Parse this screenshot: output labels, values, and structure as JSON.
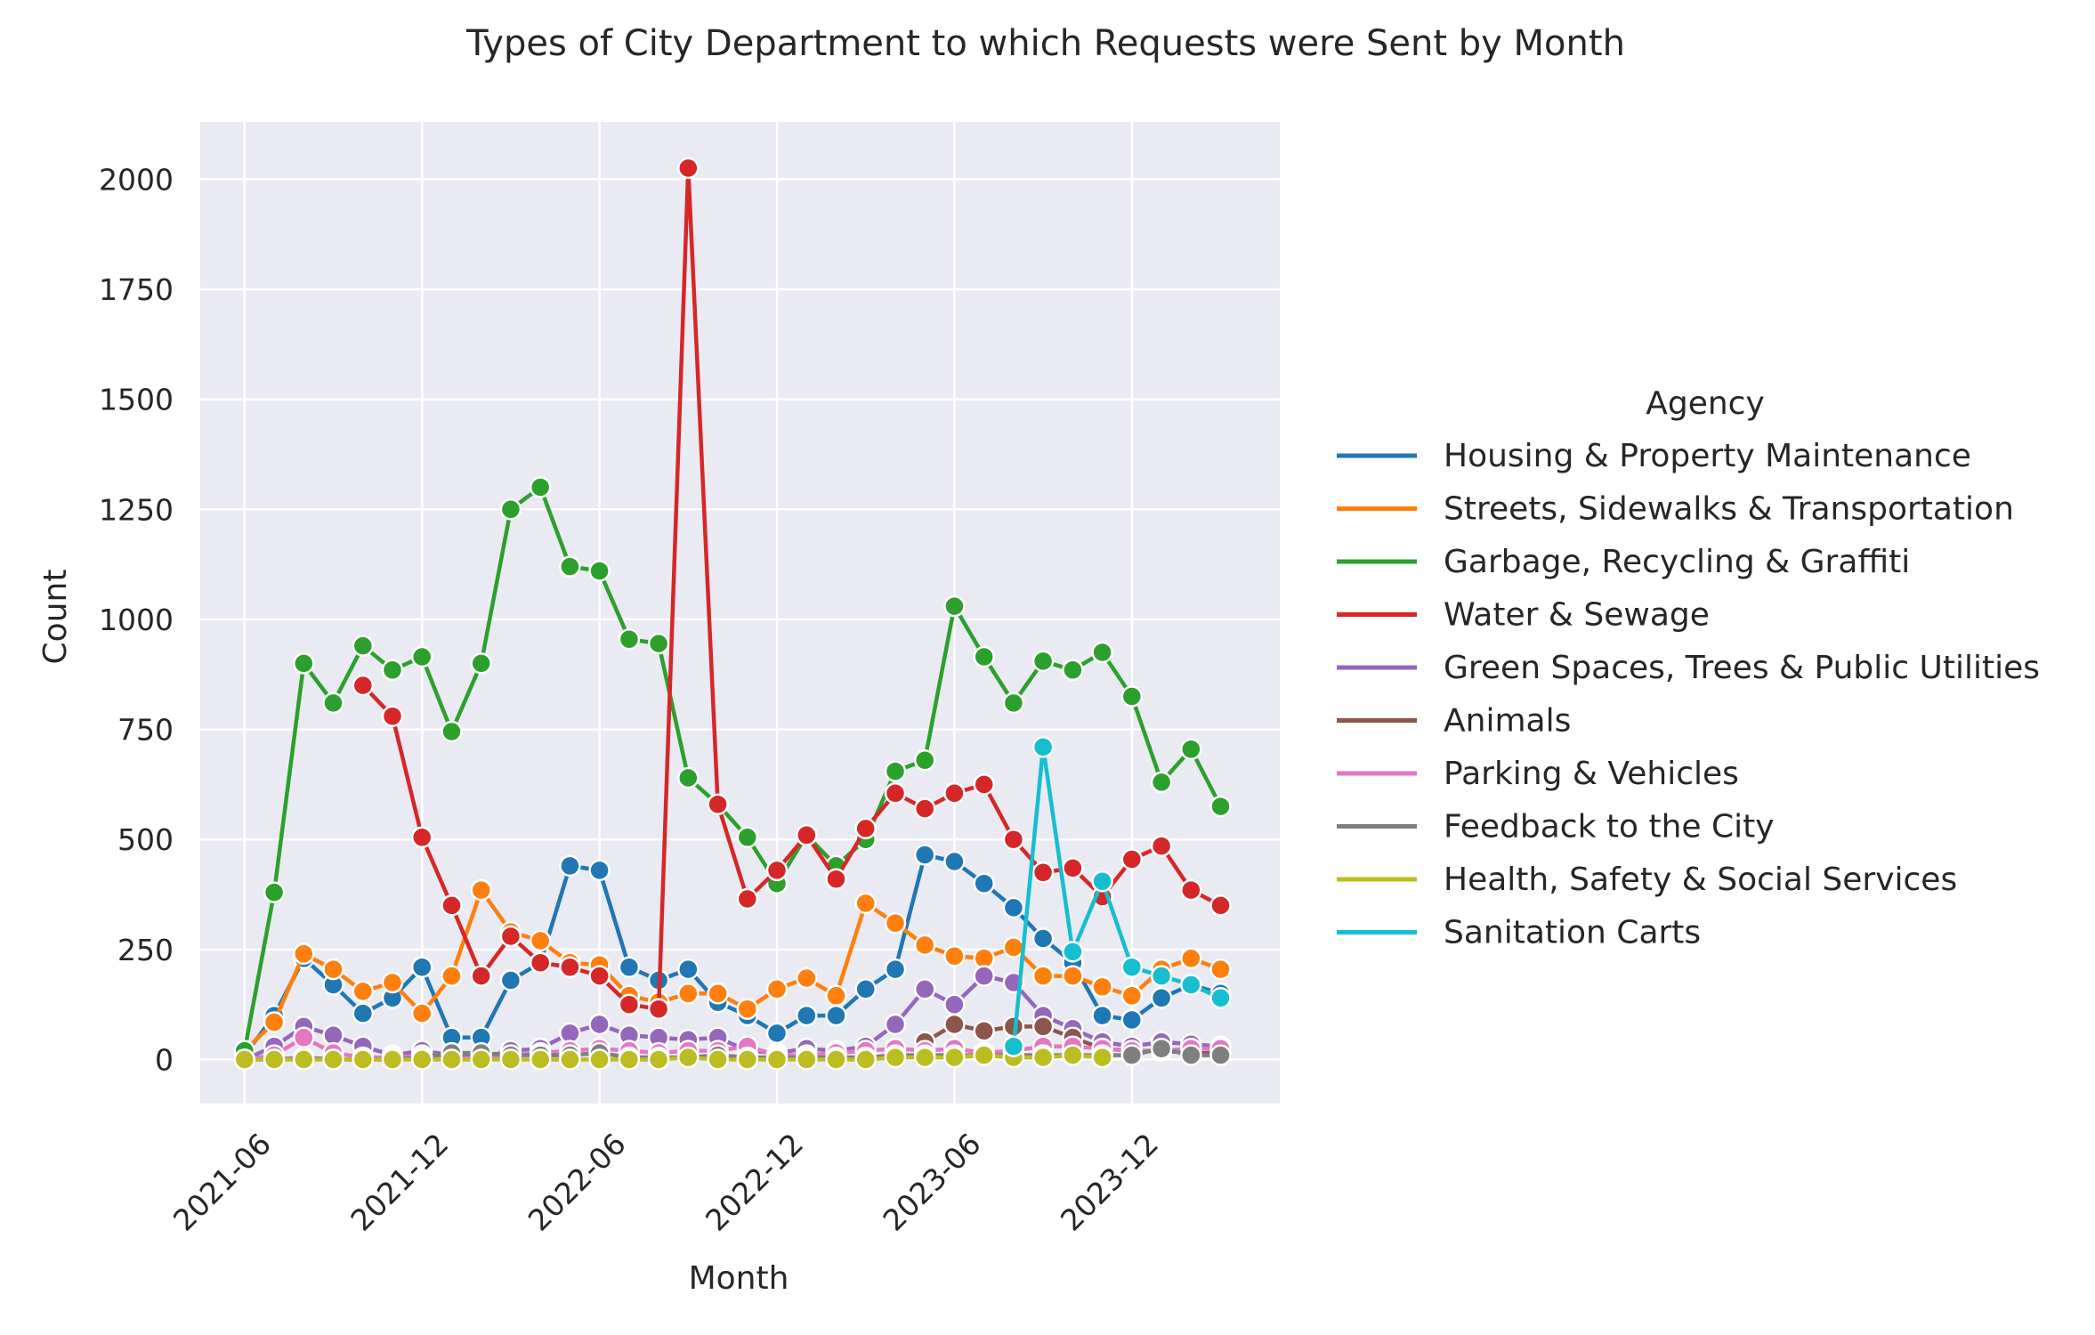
{
  "chart_data": {
    "type": "line",
    "title": "Types of City Department to which Requests were Sent by Month",
    "xlabel": "Month",
    "ylabel": "Count",
    "ylim": [
      -100,
      2130
    ],
    "y_ticks": [
      0,
      250,
      500,
      750,
      1000,
      1250,
      1500,
      1750,
      2000
    ],
    "x_ticks": [
      "2021-06",
      "2021-12",
      "2022-06",
      "2022-12",
      "2023-06",
      "2023-12"
    ],
    "x_tick_index": [
      0,
      6,
      12,
      18,
      24,
      30
    ],
    "x_range_index": [
      -1.5,
      35
    ],
    "grid": true,
    "background": "#eaeaf2",
    "legend": {
      "title": "Agency",
      "position": "right"
    },
    "x": [
      "2021-06",
      "2021-07",
      "2021-08",
      "2021-09",
      "2021-10",
      "2021-11",
      "2021-12",
      "2022-01",
      "2022-02",
      "2022-03",
      "2022-04",
      "2022-05",
      "2022-06",
      "2022-07",
      "2022-08",
      "2022-09",
      "2022-10",
      "2022-11",
      "2022-12",
      "2023-01",
      "2023-02",
      "2023-03",
      "2023-04",
      "2023-05",
      "2023-06",
      "2023-07",
      "2023-08",
      "2023-09",
      "2023-10",
      "2023-11",
      "2023-12",
      "2024-01",
      "2024-02",
      "2024-03"
    ],
    "series": [
      {
        "name": "Housing & Property Maintenance",
        "color": "#1f77b4",
        "values": [
          10,
          100,
          230,
          170,
          105,
          140,
          210,
          50,
          50,
          180,
          220,
          440,
          430,
          210,
          180,
          205,
          130,
          100,
          60,
          100,
          100,
          160,
          205,
          465,
          450,
          400,
          345,
          275,
          220,
          100,
          90,
          140,
          170,
          150
        ]
      },
      {
        "name": "Streets, Sidewalks & Transportation",
        "color": "#ff7f0e",
        "values": [
          20,
          85,
          240,
          205,
          155,
          175,
          105,
          190,
          385,
          290,
          270,
          220,
          215,
          145,
          130,
          150,
          150,
          115,
          160,
          185,
          145,
          355,
          310,
          260,
          235,
          230,
          255,
          190,
          190,
          165,
          145,
          205,
          230,
          205
        ]
      },
      {
        "name": "Garbage, Recycling & Graffiti",
        "color": "#2ca02c",
        "values": [
          20,
          380,
          900,
          810,
          940,
          885,
          915,
          745,
          900,
          1250,
          1300,
          1120,
          1110,
          955,
          945,
          640,
          580,
          505,
          400,
          510,
          440,
          500,
          655,
          680,
          1030,
          915,
          810,
          905,
          885,
          925,
          825,
          630,
          705,
          575
        ]
      },
      {
        "name": "Water & Sewage",
        "color": "#d62728",
        "values": [
          null,
          null,
          null,
          null,
          850,
          780,
          505,
          350,
          190,
          280,
          220,
          210,
          190,
          125,
          115,
          2025,
          580,
          365,
          430,
          510,
          410,
          525,
          605,
          570,
          605,
          625,
          500,
          425,
          435,
          370,
          455,
          485,
          385,
          350
        ]
      },
      {
        "name": "Green Spaces, Trees & Public Utilities",
        "color": "#9467bd",
        "values": [
          0,
          30,
          75,
          55,
          30,
          10,
          20,
          10,
          5,
          20,
          25,
          60,
          80,
          55,
          50,
          45,
          50,
          20,
          15,
          25,
          20,
          30,
          80,
          160,
          125,
          190,
          175,
          100,
          70,
          40,
          30,
          40,
          35,
          30
        ]
      },
      {
        "name": "Animals",
        "color": "#8c564b",
        "values": [
          null,
          null,
          null,
          null,
          null,
          null,
          null,
          null,
          null,
          null,
          null,
          null,
          null,
          null,
          null,
          null,
          null,
          null,
          null,
          null,
          null,
          null,
          null,
          40,
          80,
          65,
          75,
          75,
          50,
          25,
          20,
          20,
          15,
          15
        ]
      },
      {
        "name": "Parking & Vehicles",
        "color": "#e377c2",
        "values": [
          0,
          10,
          50,
          15,
          5,
          5,
          10,
          0,
          5,
          10,
          15,
          20,
          25,
          20,
          15,
          20,
          20,
          30,
          10,
          10,
          15,
          20,
          25,
          20,
          25,
          15,
          20,
          30,
          30,
          25,
          20,
          20,
          25,
          25
        ]
      },
      {
        "name": "Feedback to the City",
        "color": "#7f7f7f",
        "values": [
          0,
          0,
          5,
          0,
          0,
          0,
          5,
          15,
          15,
          10,
          10,
          10,
          15,
          5,
          5,
          5,
          10,
          5,
          5,
          5,
          5,
          5,
          10,
          10,
          10,
          10,
          10,
          10,
          10,
          10,
          10,
          25,
          10,
          10
        ]
      },
      {
        "name": "Health, Safety & Social Services",
        "color": "#bcbd22",
        "values": [
          0,
          0,
          0,
          0,
          0,
          0,
          0,
          0,
          0,
          0,
          0,
          0,
          0,
          0,
          0,
          5,
          0,
          0,
          0,
          0,
          0,
          0,
          5,
          5,
          5,
          10,
          5,
          5,
          10,
          5,
          null,
          null,
          null,
          null
        ]
      },
      {
        "name": "Sanitation Carts",
        "color": "#17becf",
        "values": [
          null,
          null,
          null,
          null,
          null,
          null,
          null,
          null,
          null,
          null,
          null,
          null,
          null,
          null,
          null,
          null,
          null,
          null,
          null,
          null,
          null,
          null,
          null,
          null,
          null,
          null,
          30,
          710,
          245,
          405,
          210,
          190,
          170,
          140
        ]
      }
    ]
  }
}
